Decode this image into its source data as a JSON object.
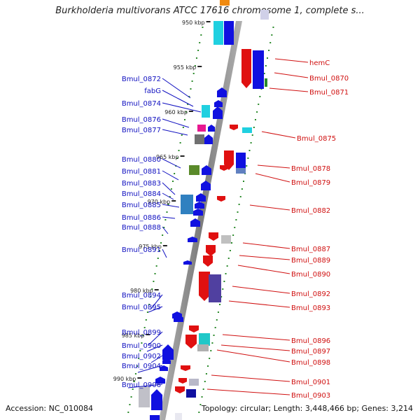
{
  "title": "Burkholderia multivorans ATCC 17616 chromosome 1, complete s...",
  "footer": {
    "accession": "Accession: NC_010084",
    "stats": "Topology: circular; Length: 3,448,466 bp; Genes: 3,214"
  },
  "colors": {
    "forward": "#1010e0",
    "reverse": "#e01010",
    "backbone": "#888888",
    "tick": "#2a8a2a"
  },
  "kbp_marks": [
    "950 kbp",
    "955 kbp",
    "960 kbp",
    "965 kbp",
    "970 kbp",
    "975 kbp",
    "980 kbp",
    "985 kbp",
    "990 kbp"
  ],
  "left_labels": [
    "Bmul_0872",
    "fabG",
    "Bmul_0874",
    "Bmul_0876",
    "Bmul_0877",
    "Bmul_0880",
    "Bmul_0881",
    "Bmul_0883",
    "Bmul_0884",
    "Bmul_0885",
    "Bmul_0886",
    "Bmul_0888",
    "Bmul_0891",
    "Bmul_0894",
    "Bmul_0895",
    "Bmul_0899",
    "Bmul_0900",
    "Bmul_0902",
    "Bmul_0904",
    "Bmul_0906"
  ],
  "right_labels": [
    "hemC",
    "Bmul_0870",
    "Bmul_0871",
    "Bmul_0875",
    "Bmul_0878",
    "Bmul_0879",
    "Bmul_0882",
    "Bmul_0887",
    "Bmul_0889",
    "Bmul_0890",
    "Bmul_0892",
    "Bmul_0893",
    "Bmul_0896",
    "Bmul_0897",
    "Bmul_0898",
    "Bmul_0901",
    "Bmul_0903"
  ]
}
